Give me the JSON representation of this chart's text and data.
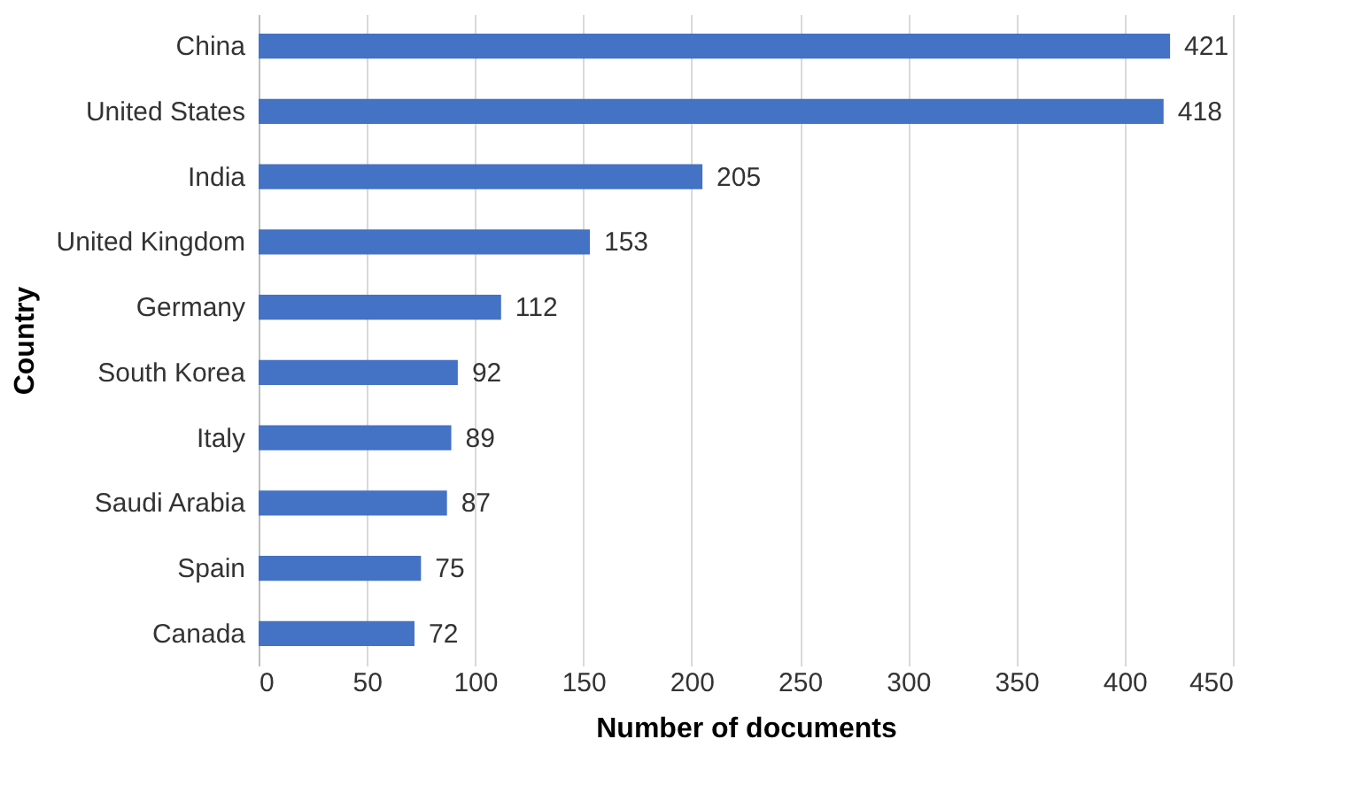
{
  "chart_data": {
    "type": "bar",
    "orientation": "horizontal",
    "xlabel": "Number of documents",
    "ylabel": "Country",
    "categories": [
      "China",
      "United States",
      "India",
      "United Kingdom",
      "Germany",
      "South Korea",
      "Italy",
      "Saudi Arabia",
      "Spain",
      "Canada"
    ],
    "values": [
      421,
      418,
      205,
      153,
      112,
      92,
      89,
      87,
      75,
      72
    ],
    "color": "#4472c4",
    "xlim": [
      0,
      450
    ],
    "xticks": [
      0,
      50,
      100,
      150,
      200,
      250,
      300,
      350,
      400,
      450
    ],
    "grid": "x",
    "data_labels": true
  }
}
